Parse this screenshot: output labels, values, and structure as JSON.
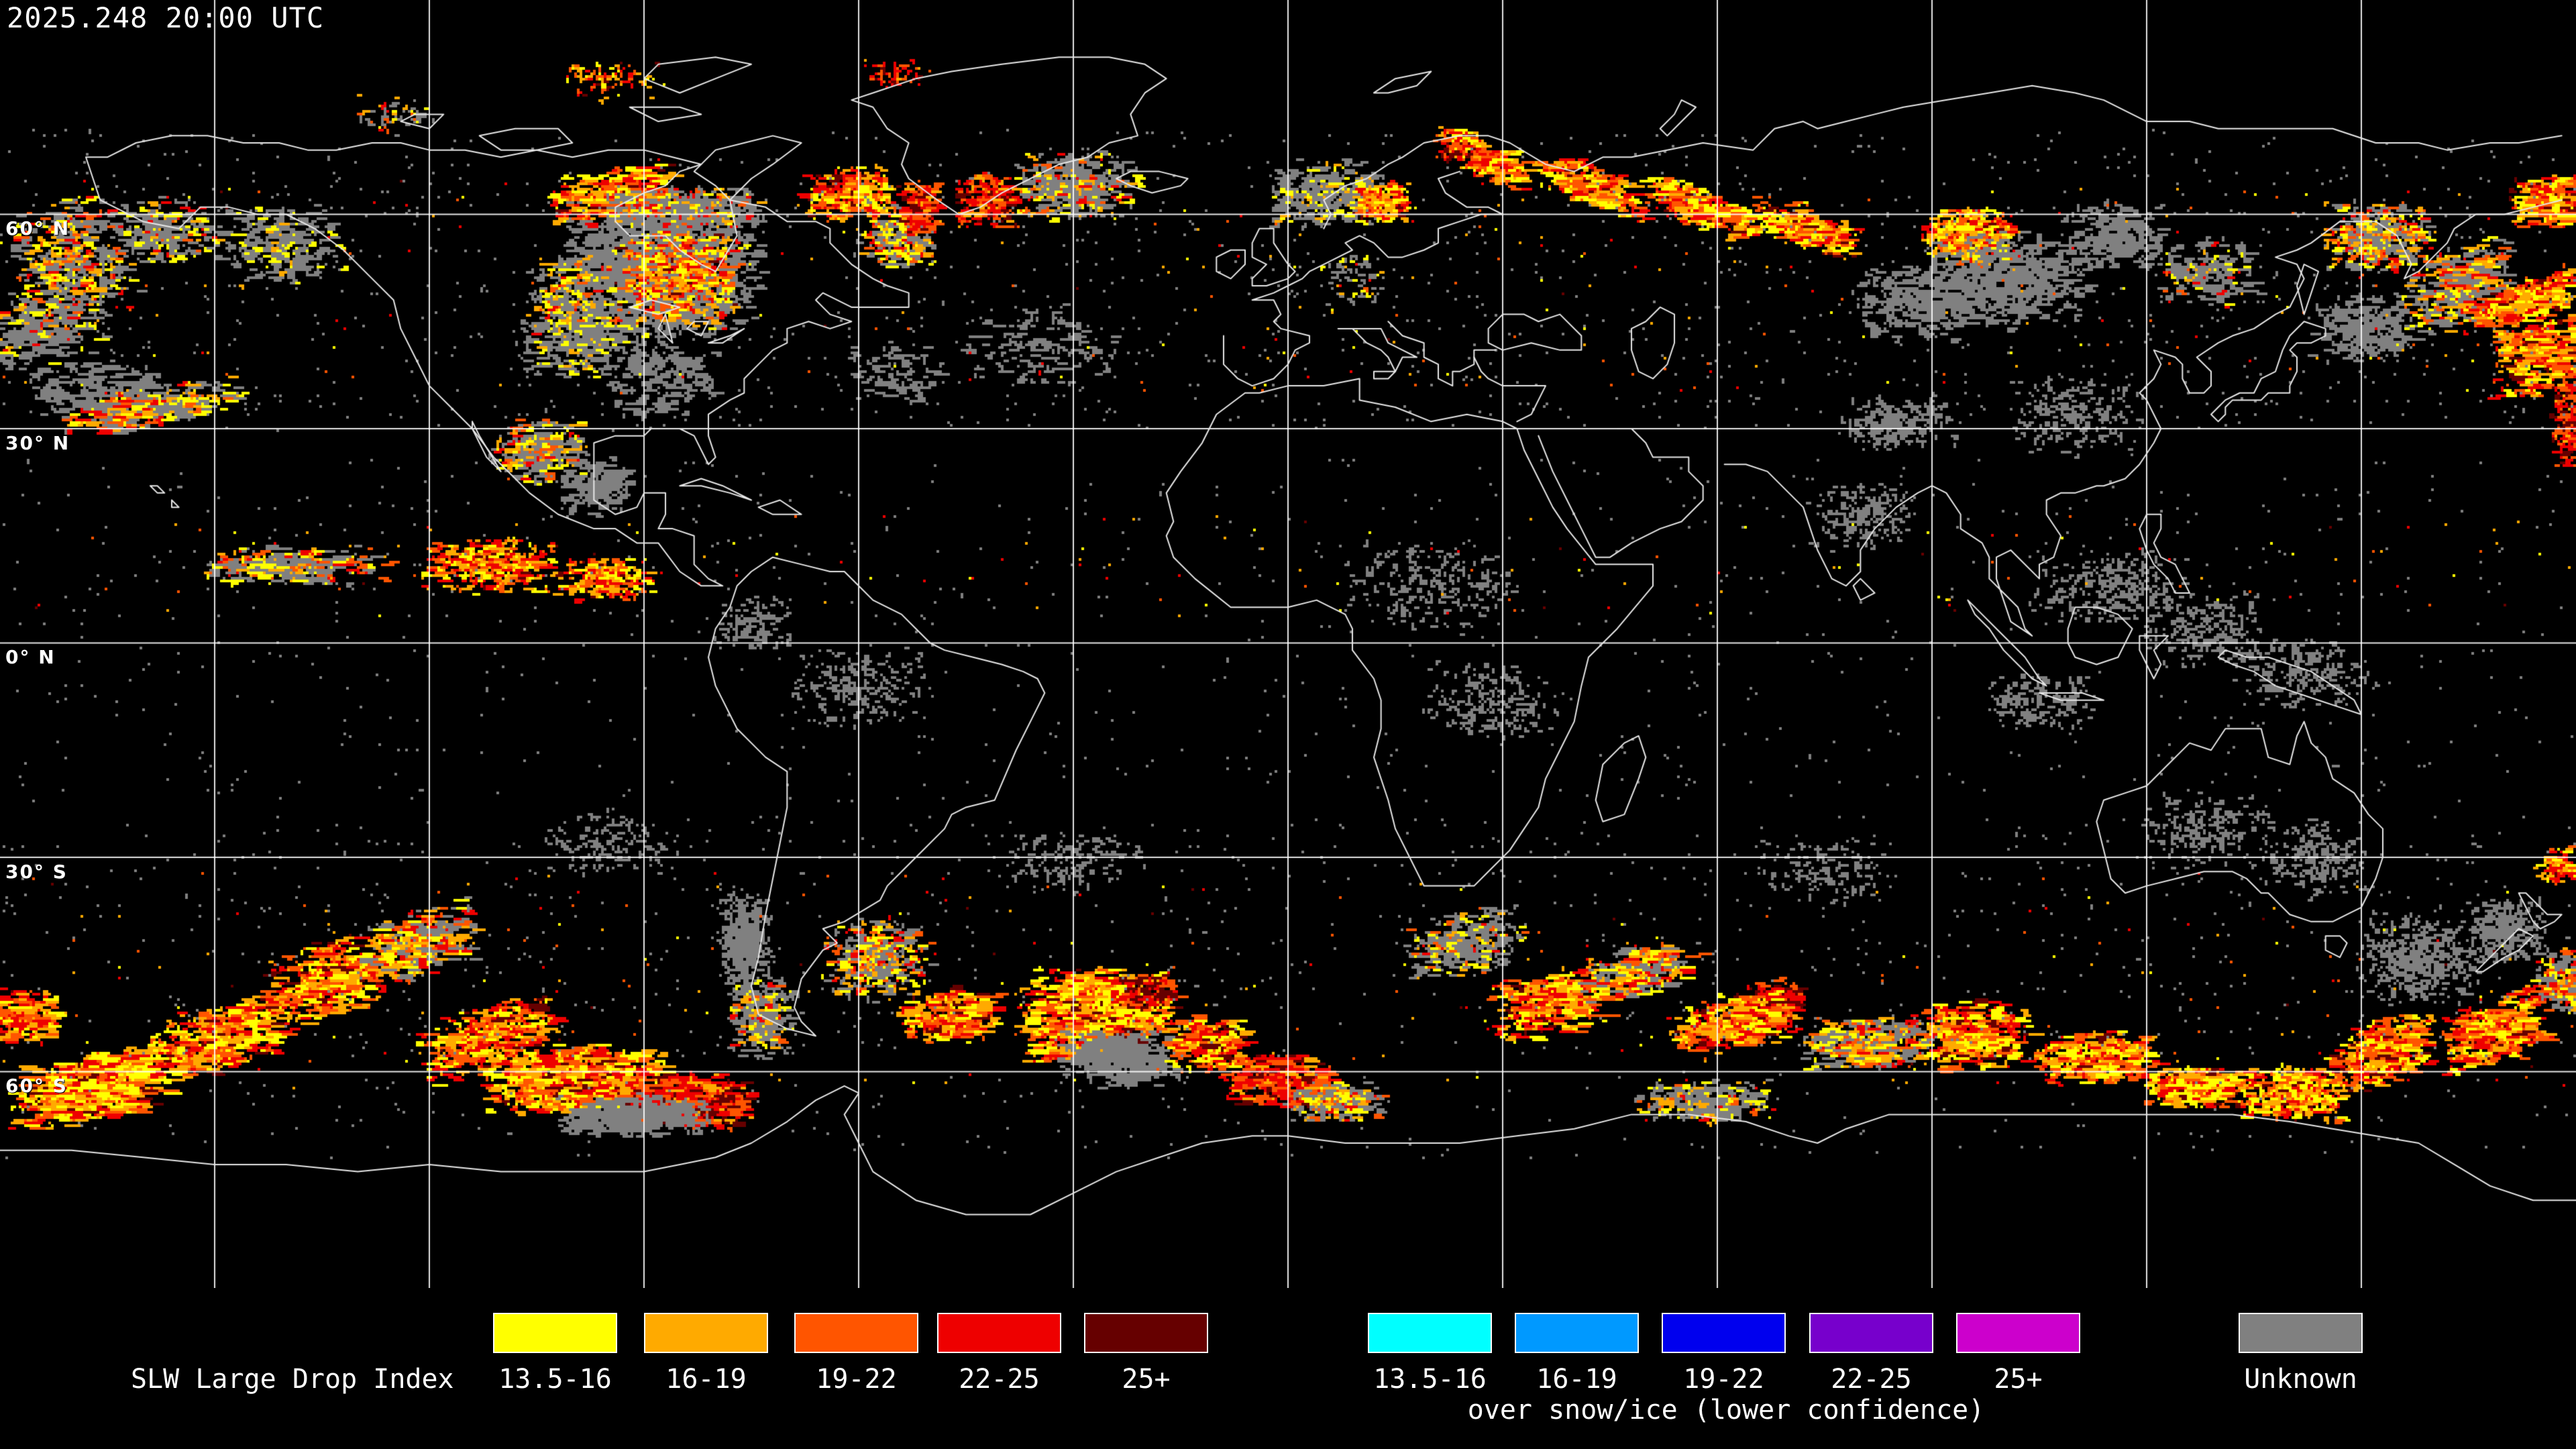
{
  "timestamp": "2025.248 20:00 UTC",
  "map": {
    "background": "#000000",
    "coastline_color": "#e8e8e8",
    "graticule": {
      "lon_step_deg": 30,
      "lat_step_deg": 30,
      "line_color": "#ffffff"
    },
    "latitude_labels": [
      {
        "text": "60° N",
        "lat": 60
      },
      {
        "text": "30° N",
        "lat": 30
      },
      {
        "text": "0° N",
        "lat": 0
      },
      {
        "text": "30° S",
        "lat": -30
      },
      {
        "text": "60° S",
        "lat": -60
      }
    ],
    "colors": {
      "gray": "#808080",
      "yellow": "#FFFF00",
      "orange": "#FFAA00",
      "orangered": "#FF5500",
      "red": "#EE0000",
      "darkred": "#660000"
    },
    "palettes": {
      "fire": [
        [
          "yellow",
          0.22
        ],
        [
          "orange",
          0.25
        ],
        [
          "orangered",
          0.25
        ],
        [
          "red",
          0.22
        ],
        [
          "darkred",
          0.06
        ]
      ],
      "fire_bright": [
        [
          "yellow",
          0.32
        ],
        [
          "orange",
          0.27
        ],
        [
          "orangered",
          0.2
        ],
        [
          "red",
          0.17
        ],
        [
          "darkred",
          0.04
        ]
      ],
      "fire_red": [
        [
          "orange",
          0.12
        ],
        [
          "orangered",
          0.3
        ],
        [
          "red",
          0.42
        ],
        [
          "darkred",
          0.16
        ]
      ],
      "fire_gray": [
        [
          "gray",
          0.42
        ],
        [
          "yellow",
          0.2
        ],
        [
          "orange",
          0.16
        ],
        [
          "orangered",
          0.12
        ],
        [
          "red",
          0.1
        ]
      ],
      "gray_fire": [
        [
          "gray",
          0.7
        ],
        [
          "yellow",
          0.12
        ],
        [
          "orange",
          0.08
        ],
        [
          "orangered",
          0.05
        ],
        [
          "red",
          0.05
        ]
      ],
      "gray_yellow": [
        [
          "gray",
          0.76
        ],
        [
          "yellow",
          0.18
        ],
        [
          "orange",
          0.06
        ]
      ],
      "gray": [
        [
          "gray",
          1
        ]
      ],
      "dark_fire": [
        [
          "red",
          0.35
        ],
        [
          "darkred",
          0.4
        ],
        [
          "orangered",
          0.25
        ]
      ]
    },
    "regions": [
      [
        -170,
        54,
        10,
        9,
        0,
        520,
        2,
        "fire_gray"
      ],
      [
        -157,
        58,
        8,
        5,
        0,
        260,
        2,
        "gray_fire"
      ],
      [
        -141,
        56,
        9,
        6,
        0,
        300,
        2,
        "gray_yellow"
      ],
      [
        -176,
        44,
        12,
        6,
        0.3,
        260,
        3,
        "gray_fire"
      ],
      [
        -168,
        36,
        10,
        4,
        0,
        160,
        3,
        "gray"
      ],
      [
        -160,
        33,
        14,
        3,
        0.15,
        300,
        3,
        "fire_gray"
      ],
      [
        -88,
        53,
        15,
        11,
        0,
        1900,
        2,
        "gray"
      ],
      [
        -86,
        52,
        10,
        8,
        0,
        520,
        2,
        "fire"
      ],
      [
        -95,
        63,
        9,
        4,
        0.2,
        360,
        3,
        "fire"
      ],
      [
        -101,
        48,
        6,
        7,
        0,
        260,
        2,
        "fire_gray"
      ],
      [
        -99,
        42,
        10,
        5,
        0,
        300,
        2,
        "gray_yellow"
      ],
      [
        -85,
        61,
        12,
        3,
        0,
        420,
        2,
        "gray_fire"
      ],
      [
        -62,
        63,
        7,
        4,
        0,
        360,
        2,
        "fire"
      ],
      [
        -55,
        57,
        6,
        5,
        0,
        260,
        2,
        "fire_gray"
      ],
      [
        -52,
        61,
        3,
        4,
        0,
        220,
        2,
        "fire_red"
      ],
      [
        -42,
        62,
        5,
        4,
        0,
        240,
        2,
        "fire_red"
      ],
      [
        -30,
        64,
        9,
        5,
        0,
        520,
        2,
        "gray_fire"
      ],
      [
        5,
        63,
        9,
        5,
        0,
        420,
        2,
        "gray_yellow"
      ],
      [
        13,
        62,
        4,
        3,
        0,
        220,
        2,
        "fire_bright"
      ],
      [
        27,
        68,
        7,
        3,
        -0.5,
        260,
        3,
        "fire"
      ],
      [
        24,
        69,
        4,
        2,
        0,
        70,
        1,
        "dark_fire"
      ],
      [
        42,
        64,
        8,
        3,
        -0.4,
        300,
        3,
        "fire"
      ],
      [
        57,
        61,
        8,
        3,
        -0.4,
        300,
        3,
        "fire"
      ],
      [
        72,
        58,
        8,
        3,
        -0.3,
        280,
        3,
        "fire"
      ],
      [
        95,
        57,
        7,
        4,
        0,
        560,
        2,
        "fire_bright"
      ],
      [
        100,
        51,
        12,
        7,
        0,
        620,
        2,
        "gray"
      ],
      [
        88,
        48,
        10,
        6,
        0,
        360,
        2,
        "gray"
      ],
      [
        115,
        57,
        8,
        5,
        0,
        260,
        2,
        "gray"
      ],
      [
        128,
        52,
        8,
        5,
        0,
        220,
        2,
        "gray_fire"
      ],
      [
        152,
        57,
        8,
        5,
        0,
        420,
        2,
        "fire_gray"
      ],
      [
        150,
        44,
        8,
        5,
        0,
        260,
        2,
        "gray"
      ],
      [
        163,
        50,
        8,
        6,
        0.4,
        360,
        3,
        "fire_gray"
      ],
      [
        176,
        62,
        6,
        4,
        0,
        300,
        3,
        "fire"
      ],
      [
        172,
        48,
        8,
        3,
        0.35,
        360,
        3,
        "fire"
      ],
      [
        174,
        41,
        7,
        7,
        0,
        420,
        3,
        "fire"
      ],
      [
        179,
        31,
        3,
        7,
        0,
        220,
        2,
        "fire_red"
      ],
      [
        9,
        51,
        5,
        4,
        0,
        70,
        1,
        "gray_fire"
      ],
      [
        -35,
        42,
        12,
        6,
        0,
        150,
        2,
        "gray"
      ],
      [
        -55,
        38,
        8,
        5,
        0,
        90,
        2,
        "gray"
      ],
      [
        -88,
        37,
        9,
        6,
        0,
        210,
        2,
        "gray"
      ],
      [
        -105,
        27,
        7,
        5,
        0,
        360,
        2,
        "fire_gray"
      ],
      [
        -97,
        22,
        6,
        4,
        0,
        210,
        2,
        "gray"
      ],
      [
        -140,
        11,
        14,
        3,
        0,
        290,
        3,
        "fire_gray"
      ],
      [
        -112,
        11,
        10,
        4,
        0,
        430,
        2,
        "fire"
      ],
      [
        -96,
        9,
        7,
        3,
        0,
        260,
        2,
        "fire"
      ],
      [
        115,
        8,
        12,
        6,
        0,
        300,
        1,
        "gray"
      ],
      [
        128,
        2,
        10,
        6,
        0,
        260,
        1,
        "gray"
      ],
      [
        142,
        -4,
        10,
        5,
        0,
        230,
        1,
        "gray"
      ],
      [
        105,
        -8,
        8,
        4,
        0,
        190,
        1,
        "gray"
      ],
      [
        20,
        8,
        13,
        7,
        0,
        270,
        1,
        "gray"
      ],
      [
        28,
        -8,
        10,
        6,
        0,
        210,
        1,
        "gray"
      ],
      [
        -60,
        -6,
        10,
        6,
        0,
        230,
        1,
        "gray"
      ],
      [
        -75,
        3,
        6,
        4,
        0,
        130,
        1,
        "gray"
      ],
      [
        80,
        18,
        8,
        5,
        0,
        210,
        1,
        "gray"
      ],
      [
        85,
        31,
        9,
        4,
        0,
        290,
        1,
        "gray"
      ],
      [
        110,
        32,
        10,
        6,
        0,
        260,
        1,
        "gray"
      ],
      [
        -168,
        -62,
        11,
        5,
        0.2,
        950,
        4,
        "fire_bright"
      ],
      [
        -150,
        -55,
        10,
        5,
        0.3,
        470,
        3,
        "fire"
      ],
      [
        -178,
        -52,
        6,
        4,
        0,
        260,
        3,
        "fire"
      ],
      [
        -135,
        -47,
        10,
        6,
        0.3,
        440,
        3,
        "fire"
      ],
      [
        -122,
        -42,
        9,
        5,
        0.3,
        310,
        3,
        "fire_gray"
      ],
      [
        -100,
        -61,
        14,
        5,
        0,
        950,
        3,
        "fire_bright"
      ],
      [
        -85,
        -64,
        10,
        4,
        0,
        620,
        3,
        "fire_red"
      ],
      [
        -92,
        -66,
        11,
        3,
        0,
        520,
        2,
        "gray"
      ],
      [
        -112,
        -55,
        10,
        5,
        0.3,
        420,
        3,
        "fire"
      ],
      [
        -76,
        -42,
        4,
        8,
        0,
        470,
        1,
        "gray"
      ],
      [
        -74,
        -52,
        5,
        6,
        0,
        310,
        2,
        "gray_fire"
      ],
      [
        -58,
        -44,
        8,
        6,
        0,
        420,
        2,
        "fire_gray"
      ],
      [
        -48,
        -52,
        7,
        4,
        0,
        310,
        3,
        "fire"
      ],
      [
        -28,
        -52,
        11,
        7,
        0,
        1150,
        3,
        "fire_bright"
      ],
      [
        -24,
        -58,
        9,
        4,
        0,
        470,
        2,
        "gray"
      ],
      [
        -12,
        -56,
        6,
        4,
        0,
        310,
        3,
        "fire"
      ],
      [
        -20,
        -49,
        5,
        3,
        0,
        130,
        2,
        "dark_fire"
      ],
      [
        -2,
        -61,
        8,
        4,
        0,
        360,
        3,
        "fire_red"
      ],
      [
        6,
        -64,
        7,
        3,
        0,
        260,
        2,
        "fire_gray"
      ],
      [
        24,
        -42,
        9,
        5,
        0.2,
        360,
        2,
        "gray_fire"
      ],
      [
        36,
        -50,
        9,
        5,
        0.2,
        420,
        3,
        "fire"
      ],
      [
        48,
        -46,
        8,
        4,
        0.2,
        310,
        3,
        "fire_gray"
      ],
      [
        68,
        -50,
        4,
        3,
        0,
        160,
        2,
        "dark_fire"
      ],
      [
        62,
        -53,
        9,
        4,
        0.2,
        420,
        3,
        "fire"
      ],
      [
        80,
        -56,
        9,
        4,
        0,
        360,
        3,
        "fire_gray"
      ],
      [
        95,
        -55,
        9,
        5,
        0,
        420,
        3,
        "fire"
      ],
      [
        58,
        -64,
        10,
        3,
        0,
        360,
        2,
        "gray_fire"
      ],
      [
        112,
        -58,
        9,
        4,
        0,
        420,
        3,
        "fire"
      ],
      [
        126,
        -62,
        7,
        3,
        0,
        470,
        3,
        "fire_bright"
      ],
      [
        140,
        -63,
        8,
        4,
        0,
        520,
        2,
        "fire_bright"
      ],
      [
        152,
        -57,
        8,
        5,
        0.3,
        420,
        3,
        "fire"
      ],
      [
        158,
        -44,
        9,
        7,
        0,
        520,
        1,
        "gray"
      ],
      [
        170,
        -40,
        6,
        5,
        0,
        310,
        1,
        "gray"
      ],
      [
        168,
        -54,
        8,
        5,
        0.3,
        470,
        3,
        "fire"
      ],
      [
        178,
        -47,
        5,
        5,
        0,
        260,
        2,
        "fire_gray"
      ],
      [
        128,
        -26,
        10,
        6,
        0,
        210,
        1,
        "gray"
      ],
      [
        143,
        -30,
        8,
        6,
        0,
        230,
        1,
        "gray"
      ],
      [
        177,
        -31,
        3,
        3,
        0,
        90,
        2,
        "fire"
      ],
      [
        -30,
        -30,
        12,
        5,
        0,
        160,
        1,
        "gray"
      ],
      [
        -95,
        -28,
        12,
        5,
        0,
        160,
        1,
        "gray"
      ],
      [
        75,
        -32,
        10,
        5,
        0,
        140,
        1,
        "gray"
      ],
      [
        -95,
        79,
        8,
        3,
        0,
        90,
        1,
        "fire"
      ],
      [
        -55,
        80,
        5,
        2,
        0,
        60,
        1,
        "fire_red"
      ],
      [
        -125,
        74,
        6,
        3,
        0,
        70,
        1,
        "gray_fire"
      ]
    ],
    "speckle": [
      {
        "n": 1400,
        "lat_range": [
          30,
          72
        ],
        "palette": "gray"
      },
      {
        "n": 320,
        "lat_range": [
          35,
          65
        ],
        "palette": "fire"
      },
      {
        "n": 800,
        "lat_range": [
          -22,
          26
        ],
        "palette": "gray"
      },
      {
        "n": 140,
        "lat_range": [
          4,
          18
        ],
        "palette": "fire"
      },
      {
        "n": 900,
        "lat_range": [
          -58,
          -24
        ],
        "palette": "gray"
      },
      {
        "n": 260,
        "lat_range": [
          -62,
          -32
        ],
        "palette": "fire"
      },
      {
        "n": 200,
        "lat_range": [
          -72,
          -60
        ],
        "palette": "gray"
      }
    ]
  },
  "legend": {
    "title": "SLW Large Drop Index",
    "primary": [
      {
        "label": "13.5-16",
        "color": "#FFFF00"
      },
      {
        "label": "16-19",
        "color": "#FFAA00"
      },
      {
        "label": "19-22",
        "color": "#FF5500"
      },
      {
        "label": "22-25",
        "color": "#EE0000"
      },
      {
        "label": "25+",
        "color": "#660000"
      }
    ],
    "snow_ice": {
      "caption": "over snow/ice (lower confidence)",
      "items": [
        {
          "label": "13.5-16",
          "color": "#00FFFF"
        },
        {
          "label": "16-19",
          "color": "#0099FF"
        },
        {
          "label": "19-22",
          "color": "#0000EE"
        },
        {
          "label": "22-25",
          "color": "#7700CC"
        },
        {
          "label": "25+",
          "color": "#CC00CC"
        }
      ]
    },
    "unknown": {
      "label": "Unknown",
      "color": "#808080"
    }
  }
}
